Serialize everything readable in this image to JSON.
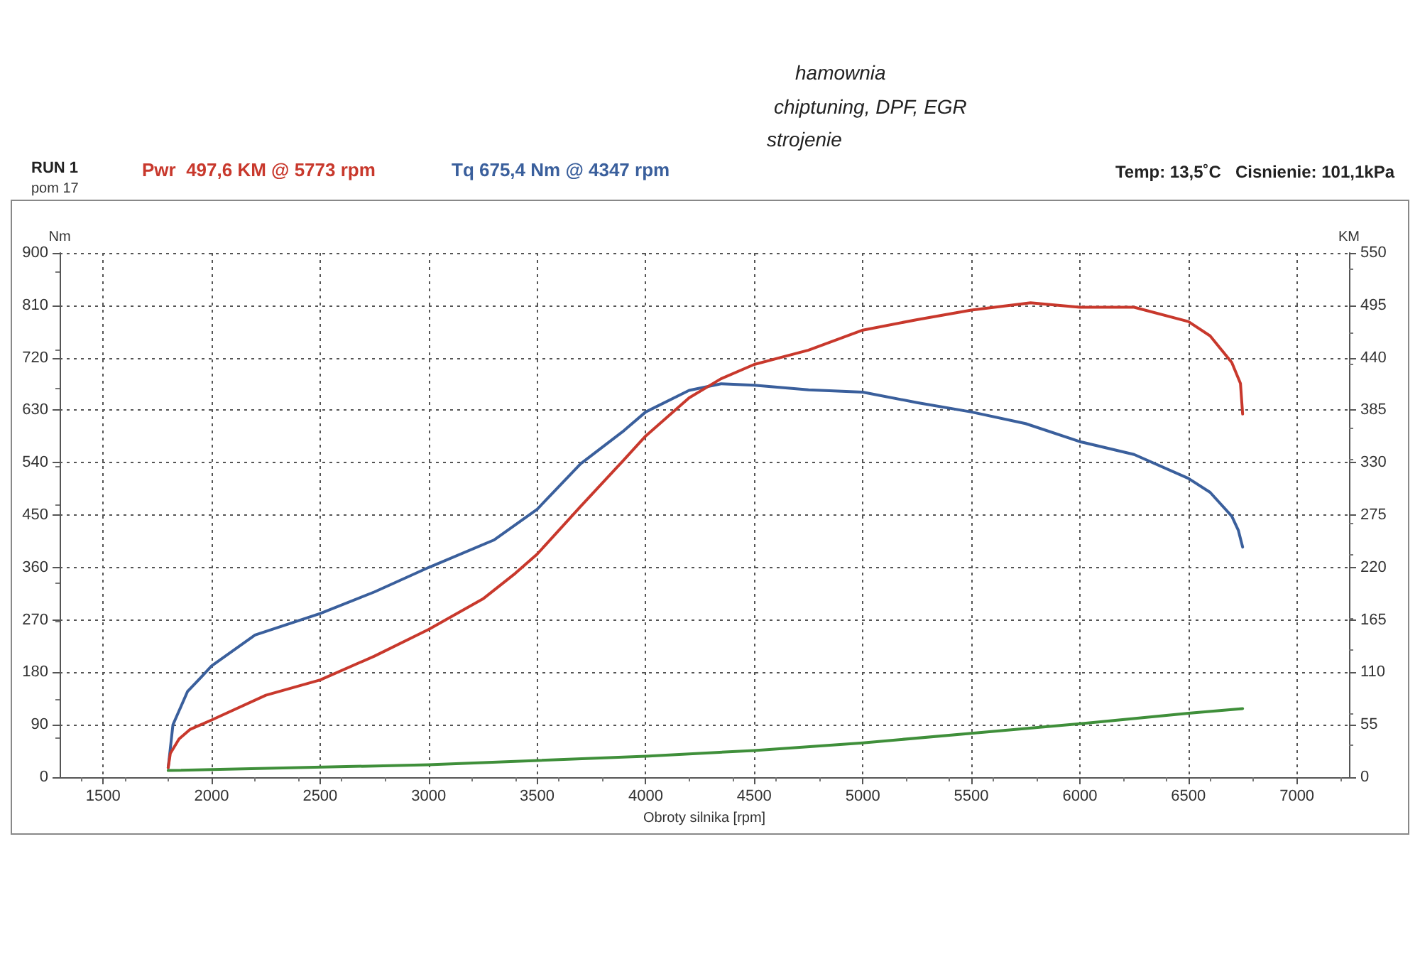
{
  "chart_data": {
    "type": "line",
    "xlabel": "Obroty silnika [rpm]",
    "ylabel": "Nm",
    "y2label": "KM",
    "annotations": [
      "RUN 1",
      "Pwr  497,6 KM @ 5773 rpm",
      "Tq 675,4 Nm @ 4347 rpm",
      "Temp: 13,5˚C   Cisnienie: 101,1kPa",
      "pom 17",
      "hamownia",
      "chiptuning, DPF, EGR",
      "strojenie"
    ],
    "xlim": [
      1300,
      7240
    ],
    "xticks": [
      1500,
      2000,
      2500,
      3000,
      3500,
      4000,
      4500,
      5000,
      5500,
      6000,
      6500,
      7000
    ],
    "ylim": [
      0,
      900
    ],
    "yticks": [
      0,
      90,
      180,
      270,
      360,
      450,
      540,
      630,
      720,
      810,
      900
    ],
    "y2lim": [
      0,
      550
    ],
    "y2ticks": [
      0,
      55,
      110,
      165,
      220,
      275,
      330,
      385,
      440,
      495,
      550
    ],
    "grid": true,
    "marker": "none",
    "line_style": "solid",
    "series": [
      {
        "color": "#3a5f9c",
        "x": [
          1800,
          1822,
          1889,
          1950,
          2000,
          2200,
          2500,
          2750,
          3000,
          3300,
          3500,
          3700,
          3900,
          4000,
          4200,
          4347,
          4500,
          4750,
          5000,
          5250,
          5500,
          5750,
          6000,
          6250,
          6500,
          6600,
          6700,
          6730,
          6750
        ],
        "values": [
          16,
          90,
          147,
          171,
          191,
          244,
          281,
          318,
          360,
          407,
          460,
          538,
          595,
          627,
          664,
          675.4,
          673,
          665,
          661,
          643,
          627,
          607,
          576,
          554,
          513,
          489,
          448,
          424,
          395
        ]
      },
      {
        "axis": "y2",
        "color": "#c8382c",
        "x": [
          1800,
          1810,
          1850,
          1900,
          2000,
          2250,
          2500,
          2750,
          3000,
          3250,
          3400,
          3500,
          3700,
          3900,
          4000,
          4200,
          4347,
          4500,
          4750,
          5000,
          5250,
          5500,
          5773,
          6000,
          6250,
          6500,
          6600,
          6700,
          6740,
          6750
        ],
        "values": [
          10,
          25,
          40,
          50,
          60,
          86,
          102,
          127,
          155,
          187,
          214,
          234,
          284,
          333,
          358,
          398,
          418,
          433,
          448,
          469,
          480,
          490,
          497.6,
          493,
          493,
          478,
          463,
          435,
          413,
          381
        ]
      },
      {
        "axis": "y2",
        "color": "#3f8f3a",
        "x": [
          1800,
          3000,
          4000,
          4500,
          5000,
          5500,
          6000,
          6500,
          6750
        ],
        "values": [
          7,
          13,
          22,
          28,
          36,
          46,
          56,
          67,
          72
        ]
      }
    ]
  }
}
